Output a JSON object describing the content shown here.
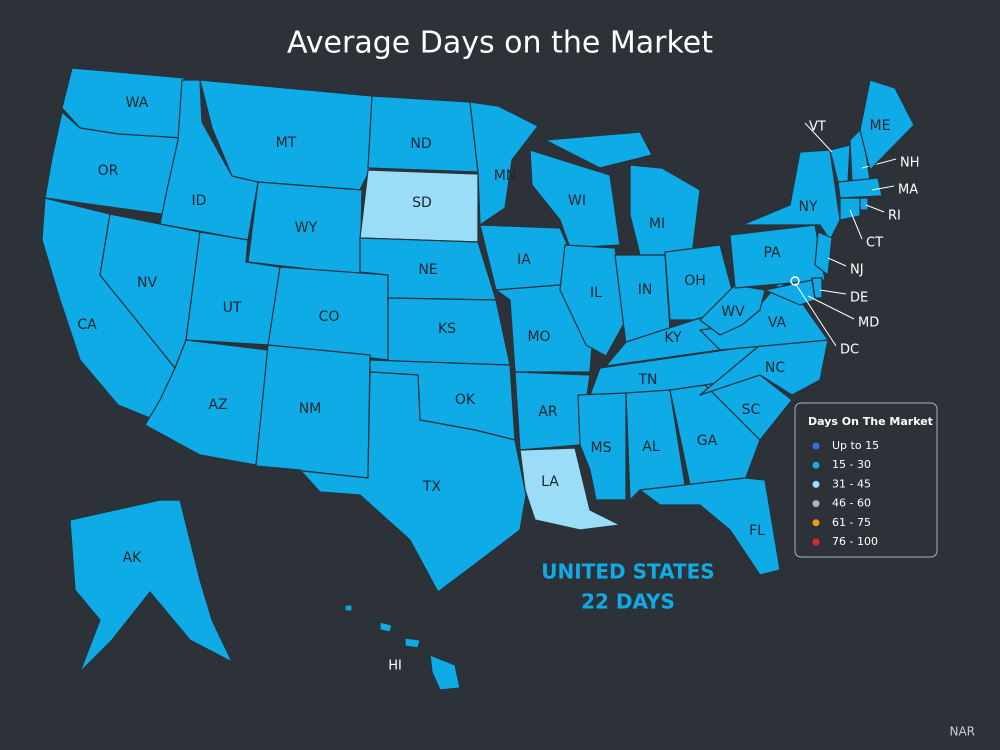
{
  "title": "Average Days on the Market",
  "legend": {
    "title": "Days On The Market",
    "items": [
      {
        "label": "Up to 15",
        "color": "#3a6fd8"
      },
      {
        "label": "15 - 30",
        "color": "#0fabe6"
      },
      {
        "label": "31 - 45",
        "color": "#9bdcf7"
      },
      {
        "label": "46 - 60",
        "color": "#aeb4b8"
      },
      {
        "label": "61 - 75",
        "color": "#f7941e"
      },
      {
        "label": "76 - 100",
        "color": "#e3262b"
      }
    ]
  },
  "summary": {
    "region": "UNITED STATES",
    "days": "22 DAYS"
  },
  "source": "NAR",
  "states": [
    {
      "label": "WA",
      "color": "#0fabe6"
    },
    {
      "label": "OR",
      "color": "#0fabe6"
    },
    {
      "label": "CA",
      "color": "#0fabe6"
    },
    {
      "label": "NV",
      "color": "#0fabe6"
    },
    {
      "label": "ID",
      "color": "#0fabe6"
    },
    {
      "label": "MT",
      "color": "#0fabe6"
    },
    {
      "label": "WY",
      "color": "#0fabe6"
    },
    {
      "label": "UT",
      "color": "#0fabe6"
    },
    {
      "label": "CO",
      "color": "#0fabe6"
    },
    {
      "label": "AZ",
      "color": "#0fabe6"
    },
    {
      "label": "NM",
      "color": "#0fabe6"
    },
    {
      "label": "ND",
      "color": "#0fabe6"
    },
    {
      "label": "SD",
      "color": "#9bdcf7"
    },
    {
      "label": "NE",
      "color": "#0fabe6"
    },
    {
      "label": "KS",
      "color": "#0fabe6"
    },
    {
      "label": "OK",
      "color": "#0fabe6"
    },
    {
      "label": "TX",
      "color": "#0fabe6"
    },
    {
      "label": "MN",
      "color": "#0fabe6"
    },
    {
      "label": "IA",
      "color": "#0fabe6"
    },
    {
      "label": "MO",
      "color": "#0fabe6"
    },
    {
      "label": "AR",
      "color": "#0fabe6"
    },
    {
      "label": "LA",
      "color": "#9bdcf7"
    },
    {
      "label": "WI",
      "color": "#0fabe6"
    },
    {
      "label": "IL",
      "color": "#0fabe6"
    },
    {
      "label": "MI",
      "color": "#0fabe6"
    },
    {
      "label": "IN",
      "color": "#0fabe6"
    },
    {
      "label": "OH",
      "color": "#0fabe6"
    },
    {
      "label": "KY",
      "color": "#0fabe6"
    },
    {
      "label": "TN",
      "color": "#0fabe6"
    },
    {
      "label": "MS",
      "color": "#0fabe6"
    },
    {
      "label": "AL",
      "color": "#0fabe6"
    },
    {
      "label": "GA",
      "color": "#0fabe6"
    },
    {
      "label": "FL",
      "color": "#0fabe6"
    },
    {
      "label": "SC",
      "color": "#0fabe6"
    },
    {
      "label": "NC",
      "color": "#0fabe6"
    },
    {
      "label": "VA",
      "color": "#0fabe6"
    },
    {
      "label": "WV",
      "color": "#0fabe6"
    },
    {
      "label": "PA",
      "color": "#0fabe6"
    },
    {
      "label": "NY",
      "color": "#0fabe6"
    },
    {
      "label": "VT",
      "color": "#0fabe6"
    },
    {
      "label": "NH",
      "color": "#0fabe6"
    },
    {
      "label": "ME",
      "color": "#0fabe6"
    },
    {
      "label": "MA",
      "color": "#0fabe6"
    },
    {
      "label": "RI",
      "color": "#0fabe6"
    },
    {
      "label": "CT",
      "color": "#0fabe6"
    },
    {
      "label": "NJ",
      "color": "#0fabe6"
    },
    {
      "label": "DE",
      "color": "#0fabe6"
    },
    {
      "label": "MD",
      "color": "#0fabe6"
    },
    {
      "label": "DC",
      "color": "#0fabe6"
    },
    {
      "label": "AK",
      "color": "#0fabe6"
    },
    {
      "label": "HI",
      "color": "#0fabe6"
    }
  ]
}
